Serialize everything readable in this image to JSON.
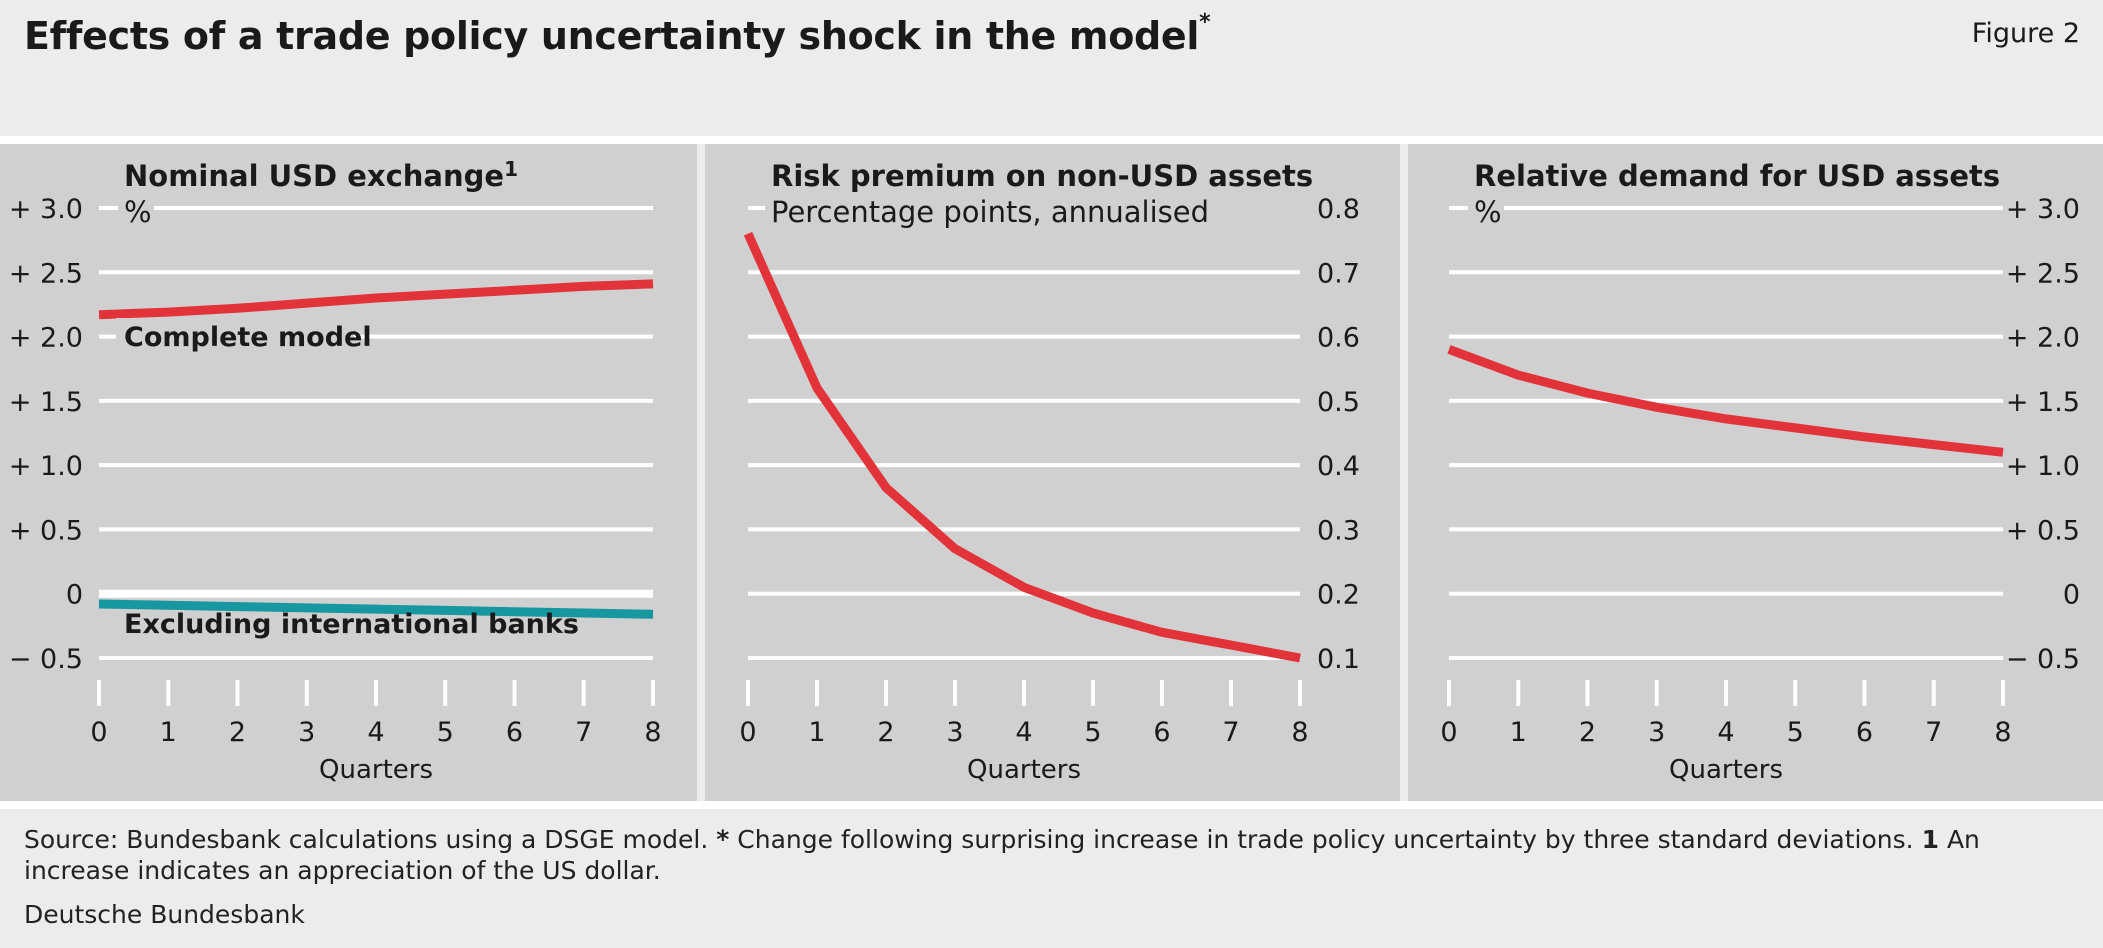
{
  "header": {
    "title": "Effects of a trade policy uncertainty shock in the model",
    "title_marker": "*",
    "figure_label": "Figure 2"
  },
  "colors": {
    "background": "#ececec",
    "panel": "#d0d0d0",
    "gridline": "#ffffff",
    "red_series": "#e3333a",
    "teal_series": "#17979f"
  },
  "chart_data": [
    {
      "type": "line",
      "title": "Nominal USD exchange",
      "title_footnote": "1",
      "unit": "%",
      "xlabel": "Quarters",
      "x": [
        0,
        1,
        2,
        3,
        4,
        5,
        6,
        7,
        8
      ],
      "xlim": [
        0,
        8
      ],
      "ylim": [
        -0.5,
        3.0
      ],
      "yticks": [
        -0.5,
        0,
        0.5,
        1.0,
        1.5,
        2.0,
        2.5,
        3.0
      ],
      "ytick_labels": [
        "− 0.5",
        "0",
        "+ 0.5",
        "+ 1.0",
        "+ 1.5",
        "+ 2.0",
        "+ 2.5",
        "+ 3.0"
      ],
      "yaxis_side": "left",
      "zero_line": true,
      "series": [
        {
          "name": "Complete model",
          "color": "#e3333a",
          "values": [
            2.17,
            2.19,
            2.22,
            2.26,
            2.3,
            2.33,
            2.36,
            2.39,
            2.41
          ]
        },
        {
          "name": "Excluding international banks",
          "color": "#17979f",
          "values": [
            -0.08,
            -0.09,
            -0.1,
            -0.11,
            -0.12,
            -0.13,
            -0.14,
            -0.15,
            -0.16
          ]
        }
      ]
    },
    {
      "type": "line",
      "title": "Risk premium on non-USD assets",
      "unit": "Percentage points, annualised",
      "xlabel": "Quarters",
      "x": [
        0,
        1,
        2,
        3,
        4,
        5,
        6,
        7,
        8
      ],
      "xlim": [
        0,
        8
      ],
      "ylim": [
        0.1,
        0.8
      ],
      "yticks": [
        0.1,
        0.2,
        0.3,
        0.4,
        0.5,
        0.6,
        0.7,
        0.8
      ],
      "ytick_labels": [
        "0.1",
        "0.2",
        "0.3",
        "0.4",
        "0.5",
        "0.6",
        "0.7",
        "0.8"
      ],
      "yaxis_side": "right",
      "zero_line": false,
      "series": [
        {
          "color": "#e3333a",
          "values": [
            0.76,
            0.52,
            0.365,
            0.27,
            0.21,
            0.17,
            0.14,
            0.12,
            0.1
          ]
        }
      ]
    },
    {
      "type": "line",
      "title": "Relative demand for USD assets",
      "unit": "%",
      "xlabel": "Quarters",
      "x": [
        0,
        1,
        2,
        3,
        4,
        5,
        6,
        7,
        8
      ],
      "xlim": [
        0,
        8
      ],
      "ylim": [
        -0.5,
        3.0
      ],
      "yticks": [
        -0.5,
        0,
        0.5,
        1.0,
        1.5,
        2.0,
        2.5,
        3.0
      ],
      "ytick_labels": [
        "− 0.5",
        "0",
        "+ 0.5",
        "+ 1.0",
        "+ 1.5",
        "+ 2.0",
        "+ 2.5",
        "+ 3.0"
      ],
      "yaxis_side": "right",
      "zero_line": false,
      "series": [
        {
          "color": "#e3333a",
          "values": [
            1.9,
            1.7,
            1.56,
            1.45,
            1.36,
            1.29,
            1.22,
            1.16,
            1.1
          ]
        }
      ]
    }
  ],
  "footer": {
    "source_prefix": "Source: Bundesbank calculations using a DSGE model.",
    "note1_marker": "*",
    "note1_text": "Change following surprising increase in trade policy uncertainty by three standard deviations.",
    "note2_marker": "1",
    "note2_text": "An increase indicates an appreciation of the US dollar.",
    "publisher": "Deutsche Bundesbank"
  }
}
